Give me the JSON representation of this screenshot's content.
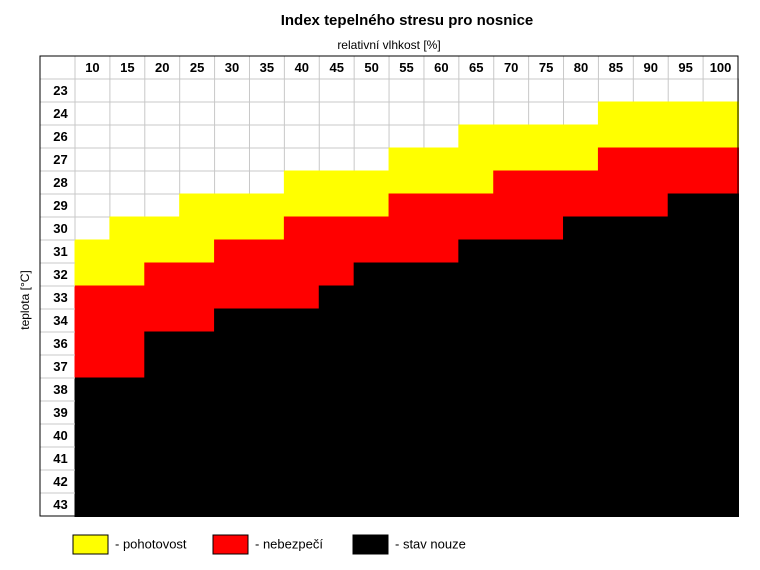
{
  "chart_data": {
    "type": "heatmap",
    "title": "Index tepelného stresu pro nosnice",
    "x_label": "relativní vlhkost [%]",
    "y_label": "teplota [°C]",
    "x": [
      10,
      15,
      20,
      25,
      30,
      35,
      40,
      45,
      50,
      55,
      60,
      65,
      70,
      75,
      80,
      85,
      90,
      95,
      100
    ],
    "y": [
      23,
      24,
      26,
      27,
      28,
      29,
      30,
      31,
      32,
      33,
      34,
      36,
      37,
      38,
      39,
      40,
      41,
      42,
      43
    ],
    "series": [
      {
        "name": "- pohotovost",
        "color": "#ffff00"
      },
      {
        "name": "- nebezpečí",
        "color": "#ff0000"
      },
      {
        "name": "- stav nouze",
        "color": "#000000"
      }
    ],
    "values": [
      [
        0,
        0,
        0,
        0,
        0,
        0,
        0,
        0,
        0,
        0,
        0,
        0,
        0,
        0,
        0,
        0,
        0,
        0,
        0
      ],
      [
        0,
        0,
        0,
        0,
        0,
        0,
        0,
        0,
        0,
        0,
        0,
        0,
        0,
        0,
        0,
        1,
        1,
        1,
        1
      ],
      [
        0,
        0,
        0,
        0,
        0,
        0,
        0,
        0,
        0,
        0,
        0,
        1,
        1,
        1,
        1,
        1,
        1,
        1,
        1
      ],
      [
        0,
        0,
        0,
        0,
        0,
        0,
        0,
        0,
        0,
        1,
        1,
        1,
        1,
        1,
        1,
        2,
        2,
        2,
        2
      ],
      [
        0,
        0,
        0,
        0,
        0,
        0,
        1,
        1,
        1,
        1,
        1,
        1,
        2,
        2,
        2,
        2,
        2,
        2,
        2
      ],
      [
        0,
        0,
        0,
        1,
        1,
        1,
        1,
        1,
        1,
        2,
        2,
        2,
        2,
        2,
        2,
        2,
        2,
        3,
        3
      ],
      [
        0,
        1,
        1,
        1,
        1,
        1,
        2,
        2,
        2,
        2,
        2,
        2,
        2,
        2,
        3,
        3,
        3,
        3,
        3
      ],
      [
        1,
        1,
        1,
        1,
        2,
        2,
        2,
        2,
        2,
        2,
        2,
        3,
        3,
        3,
        3,
        3,
        3,
        3,
        3
      ],
      [
        1,
        1,
        2,
        2,
        2,
        2,
        2,
        2,
        3,
        3,
        3,
        3,
        3,
        3,
        3,
        3,
        3,
        3,
        3
      ],
      [
        2,
        2,
        2,
        2,
        2,
        2,
        2,
        3,
        3,
        3,
        3,
        3,
        3,
        3,
        3,
        3,
        3,
        3,
        3
      ],
      [
        2,
        2,
        2,
        2,
        3,
        3,
        3,
        3,
        3,
        3,
        3,
        3,
        3,
        3,
        3,
        3,
        3,
        3,
        3
      ],
      [
        2,
        2,
        3,
        3,
        3,
        3,
        3,
        3,
        3,
        3,
        3,
        3,
        3,
        3,
        3,
        3,
        3,
        3,
        3
      ],
      [
        2,
        2,
        3,
        3,
        3,
        3,
        3,
        3,
        3,
        3,
        3,
        3,
        3,
        3,
        3,
        3,
        3,
        3,
        3
      ],
      [
        3,
        3,
        3,
        3,
        3,
        3,
        3,
        3,
        3,
        3,
        3,
        3,
        3,
        3,
        3,
        3,
        3,
        3,
        3
      ],
      [
        3,
        3,
        3,
        3,
        3,
        3,
        3,
        3,
        3,
        3,
        3,
        3,
        3,
        3,
        3,
        3,
        3,
        3,
        3
      ],
      [
        3,
        3,
        3,
        3,
        3,
        3,
        3,
        3,
        3,
        3,
        3,
        3,
        3,
        3,
        3,
        3,
        3,
        3,
        3
      ],
      [
        3,
        3,
        3,
        3,
        3,
        3,
        3,
        3,
        3,
        3,
        3,
        3,
        3,
        3,
        3,
        3,
        3,
        3,
        3
      ],
      [
        3,
        3,
        3,
        3,
        3,
        3,
        3,
        3,
        3,
        3,
        3,
        3,
        3,
        3,
        3,
        3,
        3,
        3,
        3
      ],
      [
        3,
        3,
        3,
        3,
        3,
        3,
        3,
        3,
        3,
        3,
        3,
        3,
        3,
        3,
        3,
        3,
        3,
        3,
        3
      ]
    ]
  }
}
